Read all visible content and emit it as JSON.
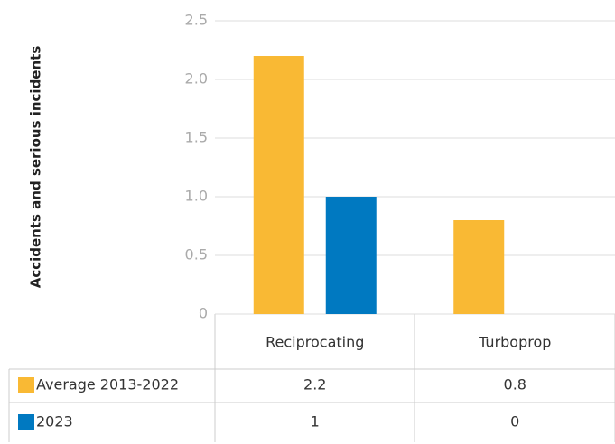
{
  "chart_data": {
    "type": "bar",
    "y_label": "Accidents and serious incidents",
    "categories": [
      "Reciprocating",
      "Turboprop"
    ],
    "series": [
      {
        "name": "Average 2013-2022",
        "color": "#f9b934",
        "values": [
          2.2,
          0.8
        ]
      },
      {
        "name": "2023",
        "color": "#0079c1",
        "values": [
          1,
          0
        ]
      }
    ],
    "ylim": [
      0,
      2.5
    ],
    "yticks": [
      0,
      0.5,
      {
        "value": 1,
        "label": "1.0"
      },
      1.5,
      {
        "value": 2,
        "label": "2.0"
      },
      2.5
    ],
    "grid": true
  }
}
